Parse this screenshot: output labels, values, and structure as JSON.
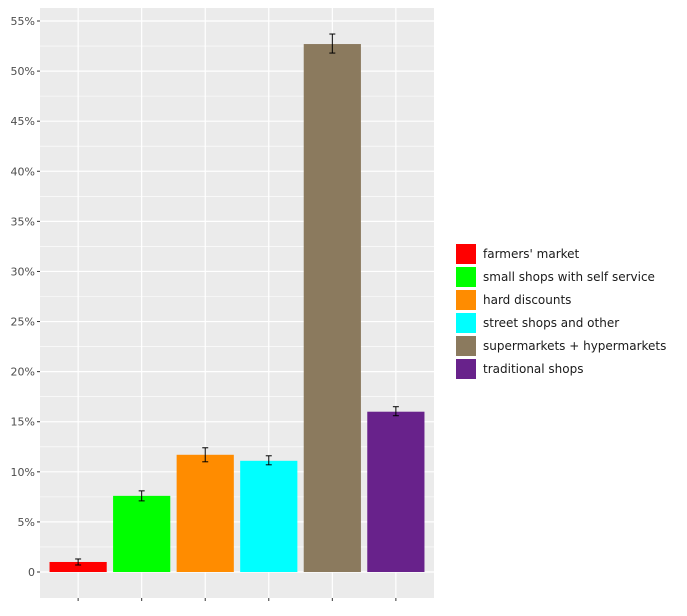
{
  "chart_data": {
    "type": "bar",
    "title": "",
    "xlabel": "",
    "ylabel": "",
    "categories": [
      "farmers' market",
      "small shops with self service",
      "hard discounts",
      "street shops and other",
      "supermarkets + hypermarkets",
      "traditional shops"
    ],
    "values": [
      1.0,
      7.6,
      11.7,
      11.1,
      52.7,
      16.0
    ],
    "error_low": [
      0.7,
      7.1,
      11.0,
      10.7,
      51.8,
      15.6
    ],
    "error_high": [
      1.3,
      8.1,
      12.4,
      11.6,
      53.7,
      16.5
    ],
    "colors": [
      "#ff0000",
      "#00ff00",
      "#ff8c00",
      "#00ffff",
      "#8b7a5e",
      "#68228b"
    ],
    "ylim": [
      0,
      55
    ],
    "yticks": [
      0,
      5,
      10,
      15,
      20,
      25,
      30,
      35,
      40,
      45,
      50,
      55
    ],
    "ytick_labels": [
      "0",
      "5%",
      "10%",
      "15%",
      "20%",
      "25%",
      "30%",
      "35%",
      "40%",
      "45%",
      "50%",
      "55%"
    ],
    "grid": true,
    "legend_position": "right"
  }
}
